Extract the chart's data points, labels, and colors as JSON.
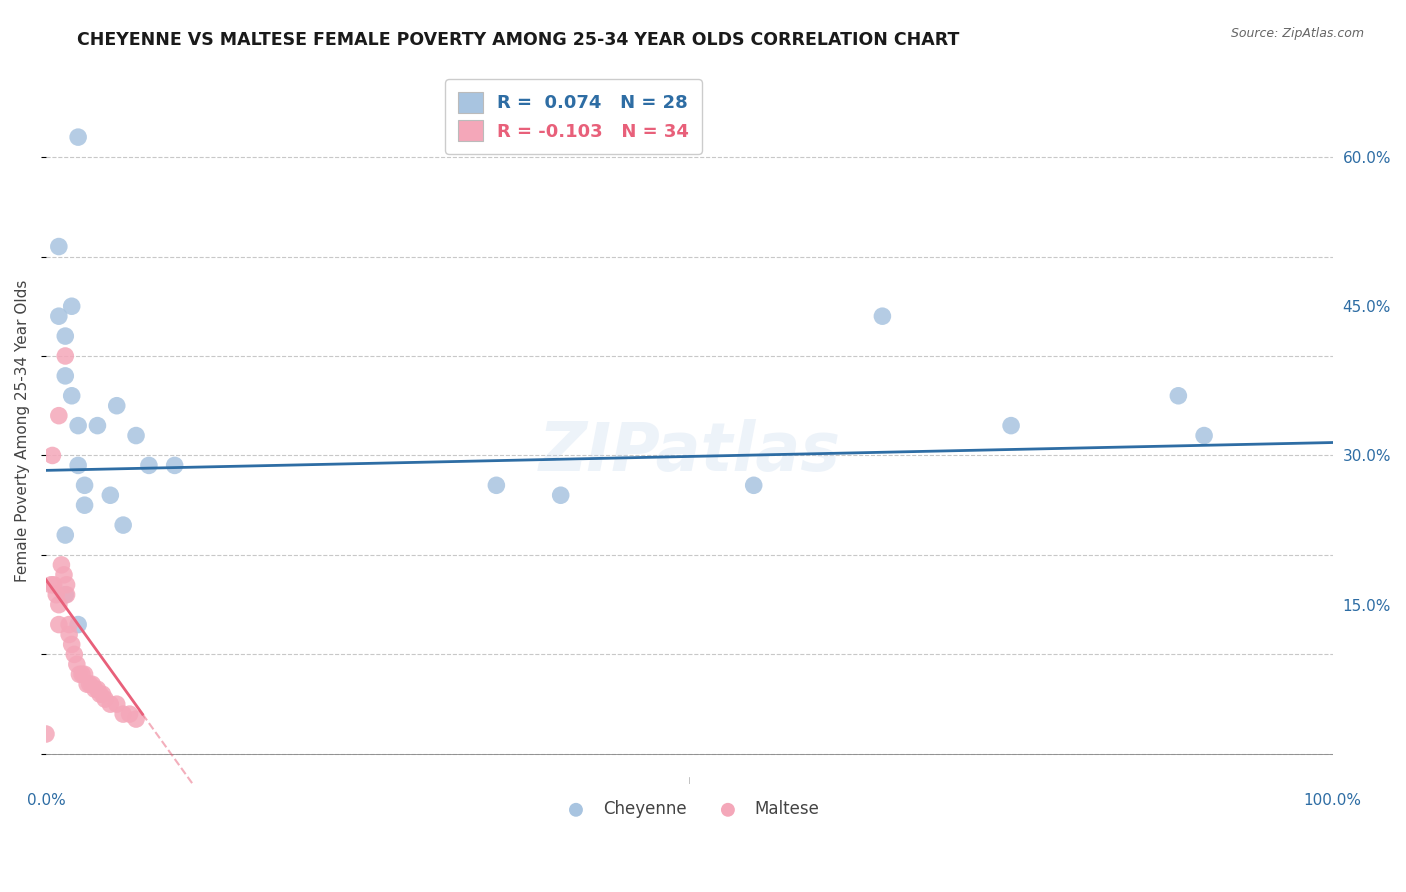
{
  "title": "CHEYENNE VS MALTESE FEMALE POVERTY AMONG 25-34 YEAR OLDS CORRELATION CHART",
  "source": "Source: ZipAtlas.com",
  "ylabel": "Female Poverty Among 25-34 Year Olds",
  "xlim": [
    0.0,
    1.0
  ],
  "ylim": [
    -0.03,
    0.68
  ],
  "yticks": [
    0.15,
    0.3,
    0.45,
    0.6
  ],
  "ytick_labels": [
    "15.0%",
    "30.0%",
    "45.0%",
    "60.0%"
  ],
  "xticks": [
    0.0,
    0.25,
    0.5,
    0.75,
    1.0
  ],
  "xtick_labels": [
    "0.0%",
    "",
    "",
    "",
    "100.0%"
  ],
  "cheyenne_R": 0.074,
  "cheyenne_N": 28,
  "maltese_R": -0.103,
  "maltese_N": 34,
  "cheyenne_color": "#a8c4e0",
  "maltese_color": "#f4a7b9",
  "cheyenne_line_color": "#2e6da4",
  "maltese_line_color": "#e8607a",
  "background_color": "#ffffff",
  "grid_color": "#c8c8c8",
  "cheyenne_x": [
    0.025,
    0.01,
    0.01,
    0.015,
    0.015,
    0.02,
    0.02,
    0.025,
    0.025,
    0.04,
    0.055,
    0.07,
    0.08,
    0.1,
    0.35,
    0.4,
    0.55,
    0.65,
    0.75,
    0.88,
    0.9,
    0.015,
    0.03,
    0.05,
    0.06,
    0.015,
    0.025,
    0.03
  ],
  "cheyenne_y": [
    0.62,
    0.51,
    0.44,
    0.42,
    0.38,
    0.45,
    0.36,
    0.33,
    0.29,
    0.33,
    0.35,
    0.32,
    0.29,
    0.29,
    0.27,
    0.26,
    0.27,
    0.44,
    0.33,
    0.36,
    0.32,
    0.22,
    0.25,
    0.26,
    0.23,
    0.16,
    0.13,
    0.27
  ],
  "maltese_x": [
    0.0,
    0.004,
    0.006,
    0.008,
    0.01,
    0.01,
    0.012,
    0.014,
    0.016,
    0.016,
    0.018,
    0.018,
    0.02,
    0.022,
    0.024,
    0.026,
    0.028,
    0.03,
    0.032,
    0.034,
    0.036,
    0.038,
    0.04,
    0.042,
    0.044,
    0.046,
    0.05,
    0.055,
    0.06,
    0.065,
    0.07,
    0.005,
    0.01,
    0.015
  ],
  "maltese_y": [
    0.02,
    0.17,
    0.17,
    0.16,
    0.15,
    0.13,
    0.19,
    0.18,
    0.17,
    0.16,
    0.13,
    0.12,
    0.11,
    0.1,
    0.09,
    0.08,
    0.08,
    0.08,
    0.07,
    0.07,
    0.07,
    0.065,
    0.065,
    0.06,
    0.06,
    0.055,
    0.05,
    0.05,
    0.04,
    0.04,
    0.035,
    0.3,
    0.34,
    0.4
  ],
  "maltese_line_intercept": 0.175,
  "maltese_line_slope": -1.8,
  "cheyenne_line_intercept": 0.285,
  "cheyenne_line_slope": 0.028,
  "watermark": "ZIPatlas",
  "legend_cheyenne_label": "Cheyenne",
  "legend_maltese_label": "Maltese"
}
